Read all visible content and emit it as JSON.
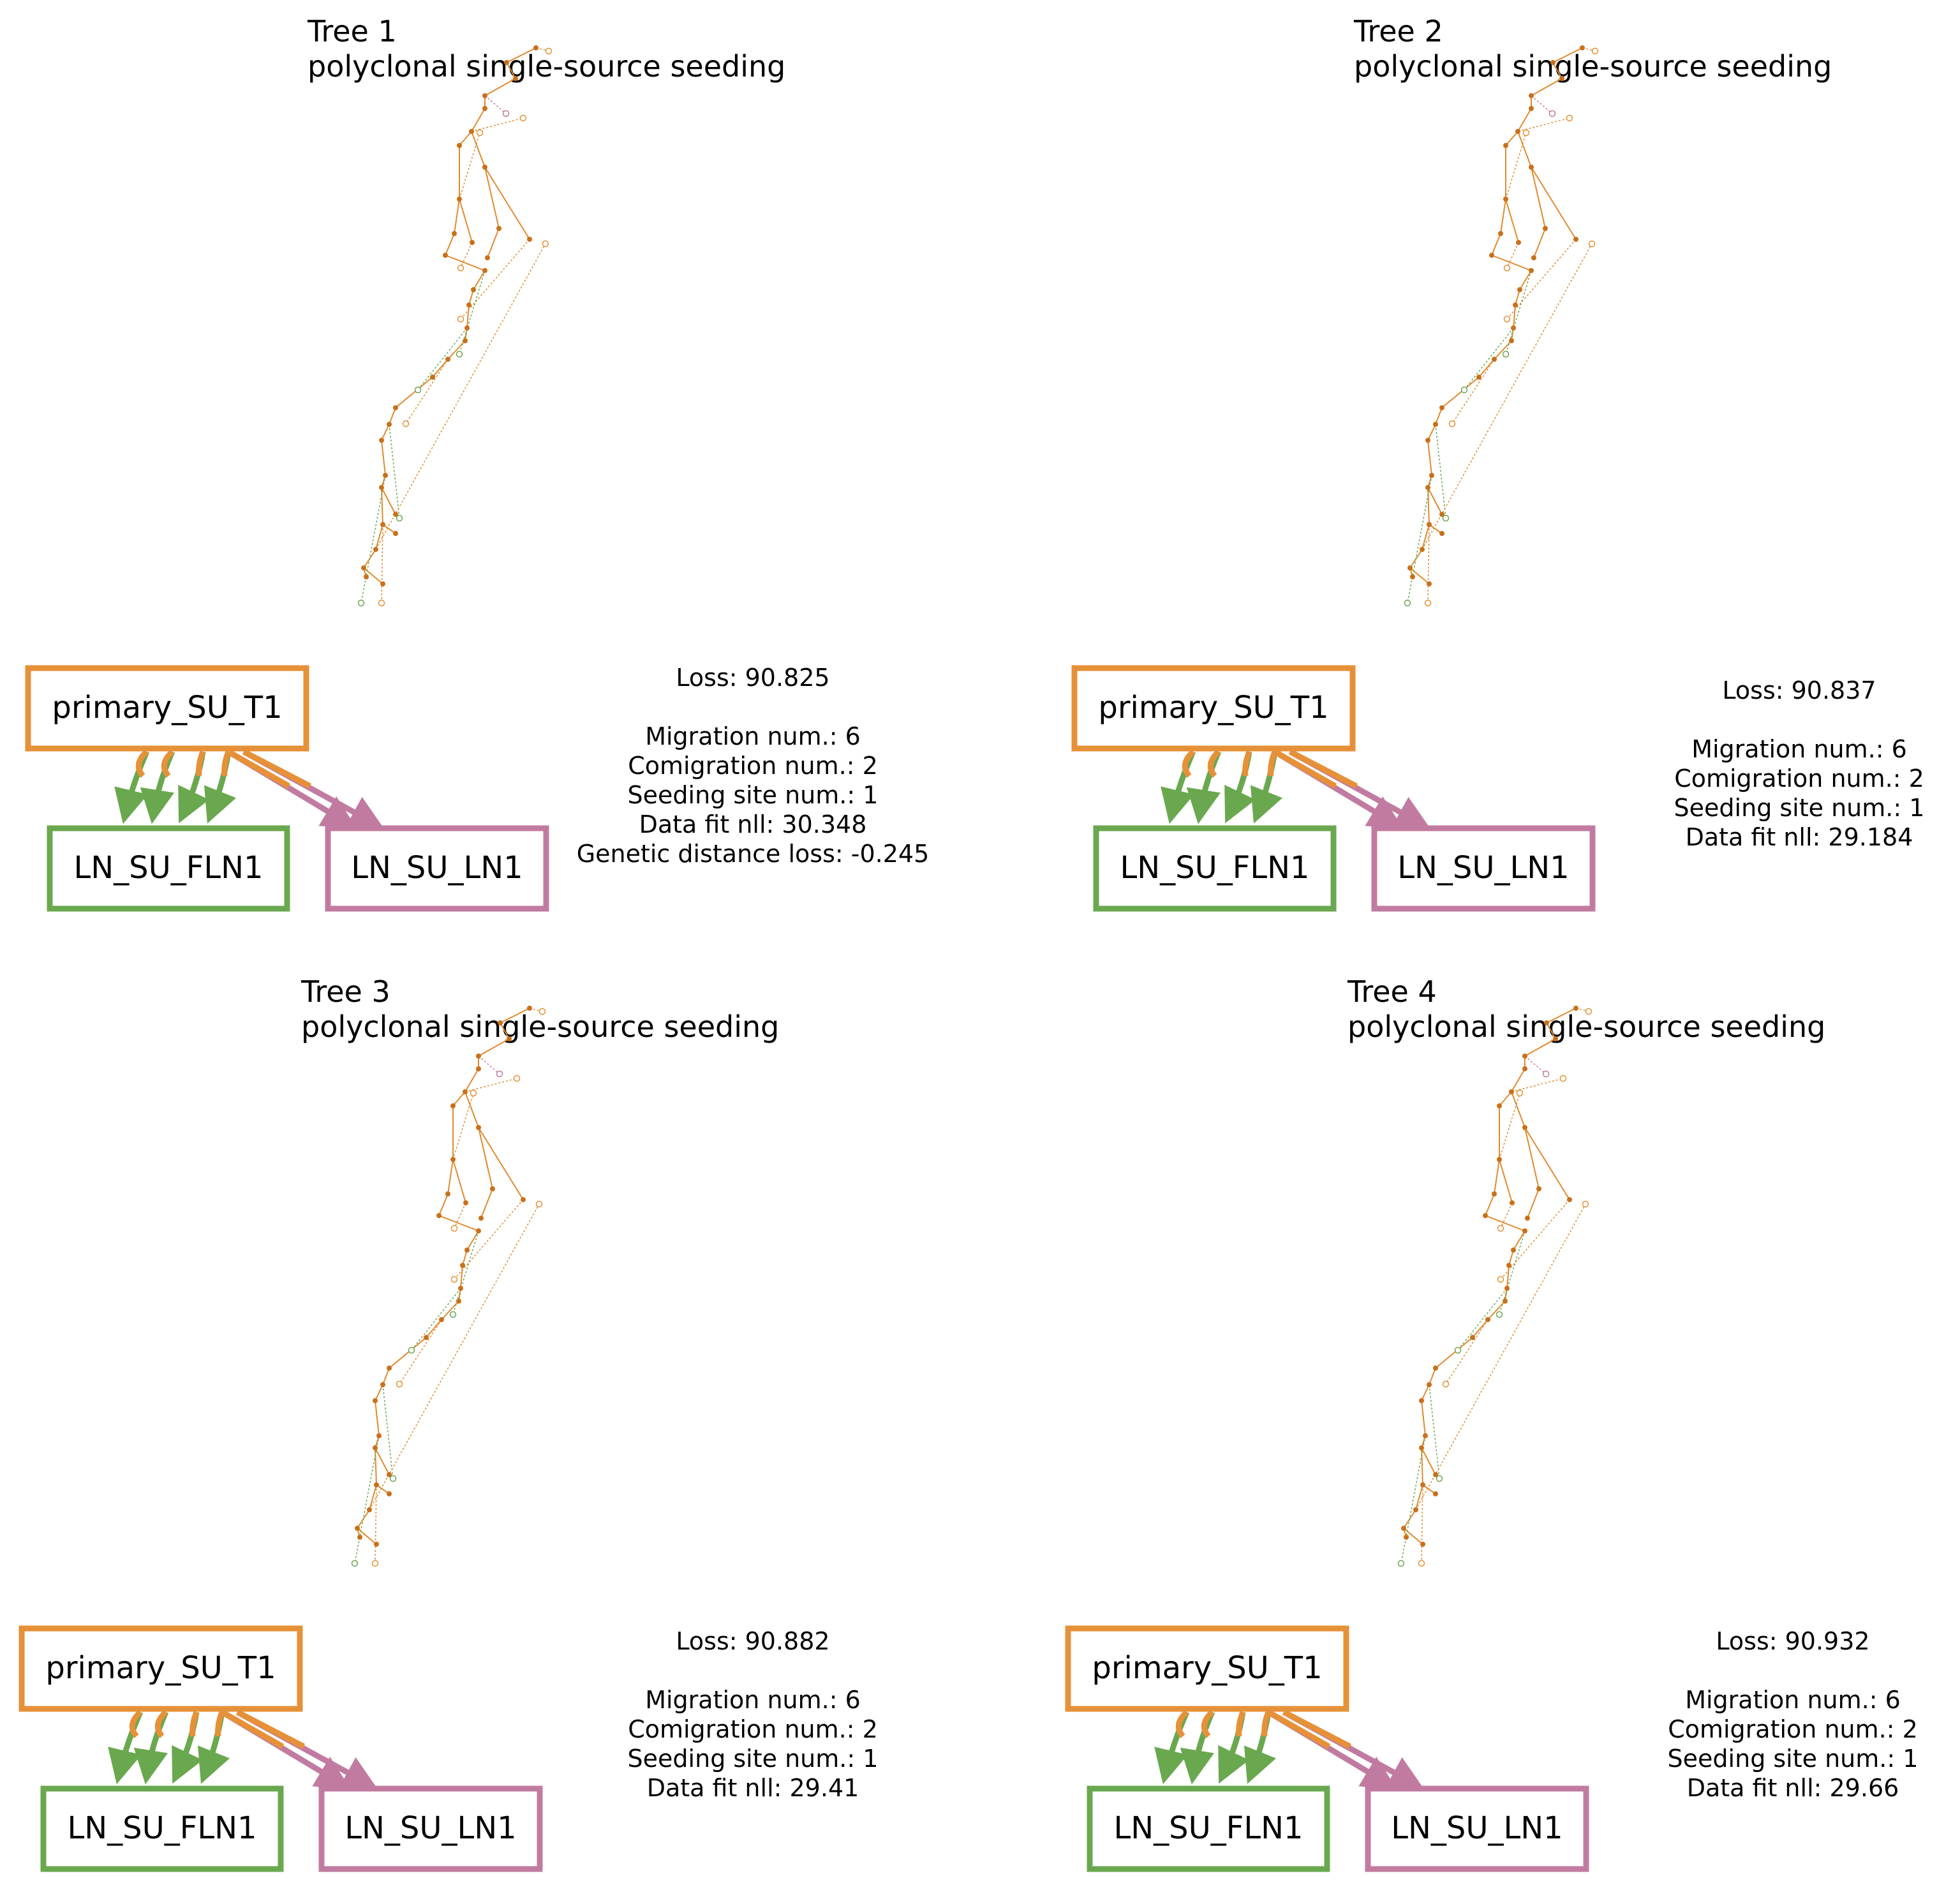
{
  "colors": {
    "primary": "#e69138",
    "ln_fln1": "#6aa84f",
    "ln_ln1": "#c27ba0",
    "edge": "#e08a2e"
  },
  "panels": [
    {
      "tree_title": "Tree 1",
      "pattern": "polyclonal single-source seeding",
      "loss": "Loss: 90.825",
      "stats": [
        "Migration num.: 6",
        "Comigration num.: 2",
        "Seeding site num.: 1",
        "Data fit nll: 30.348",
        "Genetic distance loss: -0.245"
      ],
      "primary_label": "primary_SU_T1",
      "fln_label": "LN_SU_FLN1",
      "ln_label": "LN_SU_LN1"
    },
    {
      "tree_title": "Tree 2",
      "pattern": "polyclonal single-source seeding",
      "loss": "Loss: 90.837",
      "stats": [
        "Migration num.: 6",
        "Comigration num.: 2",
        "Seeding site num.: 1",
        "Data fit nll: 29.184"
      ],
      "primary_label": "primary_SU_T1",
      "fln_label": "LN_SU_FLN1",
      "ln_label": "LN_SU_LN1"
    },
    {
      "tree_title": "Tree 3",
      "pattern": "polyclonal single-source seeding",
      "loss": "Loss: 90.882",
      "stats": [
        "Migration num.: 6",
        "Comigration num.: 2",
        "Seeding site num.: 1",
        "Data fit nll: 29.41"
      ],
      "primary_label": "primary_SU_T1",
      "fln_label": "LN_SU_FLN1",
      "ln_label": "LN_SU_LN1"
    },
    {
      "tree_title": "Tree 4",
      "pattern": "polyclonal single-source seeding",
      "loss": "Loss: 90.932",
      "stats": [
        "Migration num.: 6",
        "Comigration num.: 2",
        "Seeding site num.: 1",
        "Data fit nll: 29.66"
      ],
      "primary_label": "primary_SU_T1",
      "fln_label": "LN_SU_FLN1",
      "ln_label": "LN_SU_LN1"
    }
  ]
}
